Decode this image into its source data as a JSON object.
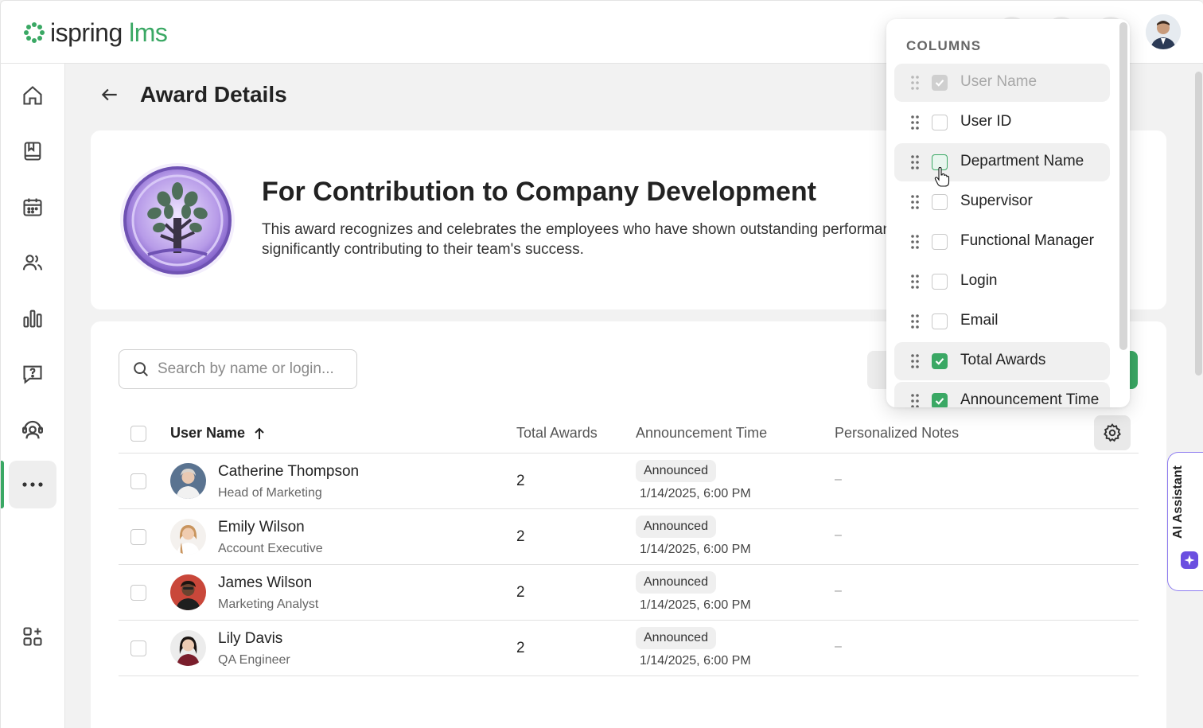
{
  "app": {
    "logo_text": "ispring",
    "logo_suffix": "lms"
  },
  "header": {
    "title": "Award Details"
  },
  "award": {
    "title": "For Contribution to Company Development",
    "description_line1": "This award recognizes and celebrates the employees who have shown outstanding performance,",
    "description_line2": "significantly contributing to their team's success."
  },
  "search": {
    "placeholder": "Search by name or login..."
  },
  "table": {
    "columns": {
      "user_name": "User Name",
      "total_awards": "Total Awards",
      "announcement_time": "Announcement Time",
      "personalized_notes": "Personalized Notes"
    },
    "rows": [
      {
        "name": "Catherine Thompson",
        "role": "Head of Marketing",
        "awards": "2",
        "status": "Announced",
        "time": "1/14/2025, 6:00 PM",
        "notes": "–"
      },
      {
        "name": "Emily Wilson",
        "role": "Account Executive",
        "awards": "2",
        "status": "Announced",
        "time": "1/14/2025, 6:00 PM",
        "notes": "–"
      },
      {
        "name": "James Wilson",
        "role": "Marketing Analyst",
        "awards": "2",
        "status": "Announced",
        "time": "1/14/2025, 6:00 PM",
        "notes": "–"
      },
      {
        "name": "Lily Davis",
        "role": "QA Engineer",
        "awards": "2",
        "status": "Announced",
        "time": "1/14/2025, 6:00 PM",
        "notes": "–"
      }
    ]
  },
  "columns_menu": {
    "title": "COLUMNS",
    "items": [
      {
        "label": "User Name",
        "checked": true,
        "disabled": true
      },
      {
        "label": "User ID",
        "checked": false
      },
      {
        "label": "Department Name",
        "checked": false,
        "hover": true
      },
      {
        "label": "Supervisor",
        "checked": false
      },
      {
        "label": "Functional Manager",
        "checked": false
      },
      {
        "label": "Login",
        "checked": false
      },
      {
        "label": "Email",
        "checked": false
      },
      {
        "label": "Total Awards",
        "checked": true
      },
      {
        "label": "Announcement Time",
        "checked": true
      }
    ]
  },
  "ai_assistant": {
    "label": "AI Assistant"
  },
  "colors": {
    "accent": "#3aa864",
    "ai_purple": "#6b4fe0"
  }
}
